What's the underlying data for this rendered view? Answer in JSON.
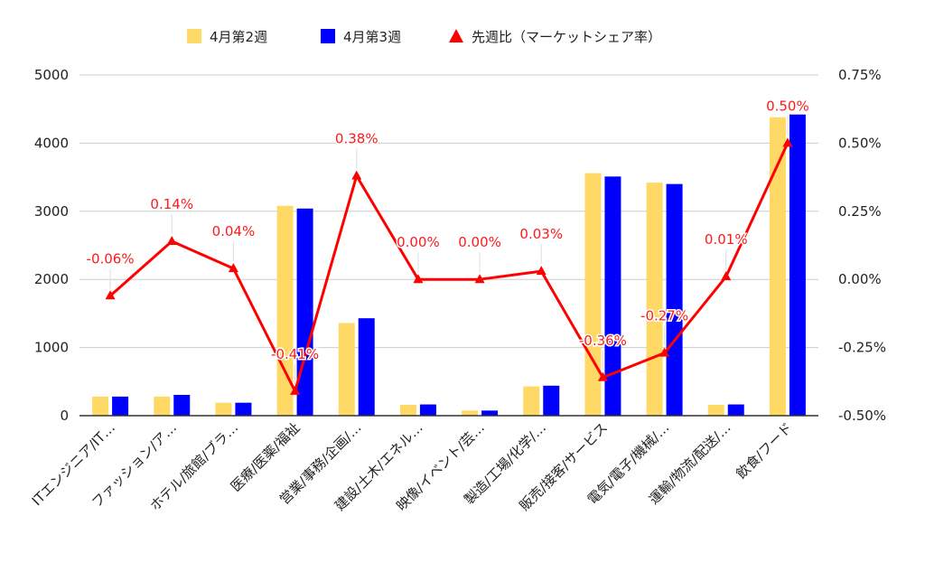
{
  "chart_data": {
    "type": "bar",
    "categories": [
      "ITエンジニア/IT…",
      "ファッション/ア…",
      "ホテル/旅館/ブラ…",
      "医療/医薬/福祉",
      "営業/事務/企画/…",
      "建設/土木/エネル…",
      "映像/イベント/芸…",
      "製造/工場/化学/…",
      "販売/接客/サービス",
      "電気/電子/機械/…",
      "運輸/物流/配送/…",
      "飲食/フード"
    ],
    "series": [
      {
        "name": "4月第2週",
        "type": "bar",
        "axis": "left",
        "color": "#ffd966",
        "values": [
          280,
          280,
          190,
          3080,
          1360,
          160,
          75,
          430,
          3560,
          3420,
          160,
          4380
        ]
      },
      {
        "name": "4月第3週",
        "type": "bar",
        "axis": "left",
        "color": "#0000ff",
        "values": [
          280,
          305,
          190,
          3040,
          1430,
          165,
          75,
          440,
          3510,
          3400,
          165,
          4420
        ]
      },
      {
        "name": "先週比（マーケットシェア率）",
        "type": "line",
        "axis": "right",
        "color": "#ff0000",
        "values": [
          -0.06,
          0.14,
          0.04,
          -0.41,
          0.38,
          0.0,
          0.0,
          0.03,
          -0.36,
          -0.27,
          0.01,
          0.5
        ],
        "labels": [
          "-0.06%",
          "0.14%",
          "0.04%",
          "-0.41%",
          "0.38%",
          "0.00%",
          "0.00%",
          "0.03%",
          "-0.36%",
          "-0.27%",
          "0.01%",
          "0.50%"
        ]
      }
    ],
    "y_left": {
      "ylim": [
        0,
        5000
      ],
      "ticks": [
        "0",
        "1000",
        "2000",
        "3000",
        "4000",
        "5000"
      ],
      "tick_values": [
        0,
        1000,
        2000,
        3000,
        4000,
        5000
      ]
    },
    "y_right": {
      "ylim": [
        -0.5,
        0.75
      ],
      "ticks": [
        "-0.50%",
        "-0.25%",
        "0.00%",
        "0.25%",
        "0.50%",
        "0.75%"
      ],
      "tick_values": [
        -0.5,
        -0.25,
        0,
        0.25,
        0.5,
        0.75
      ]
    },
    "legend_position": "top-center",
    "grid": true
  }
}
